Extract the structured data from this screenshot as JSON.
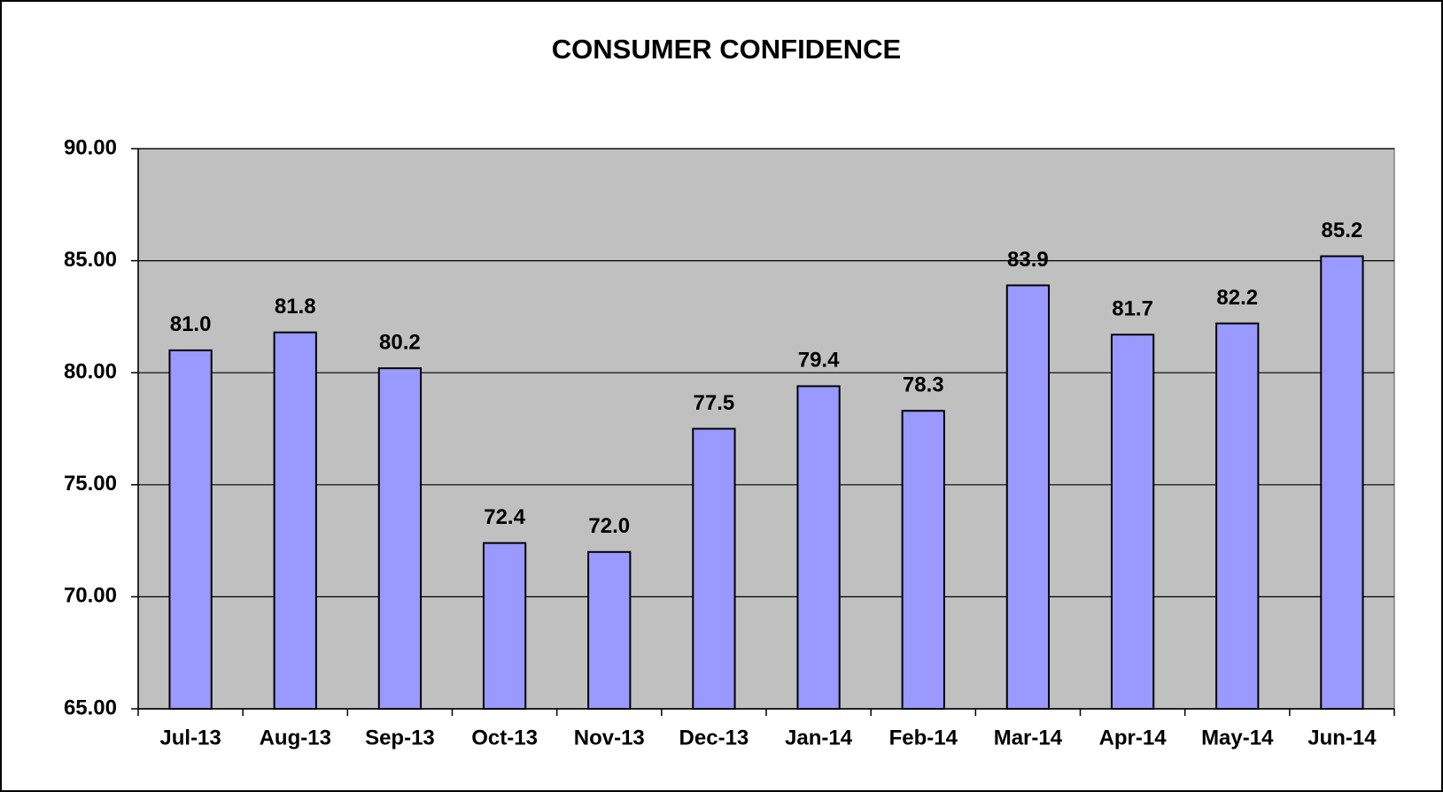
{
  "chart_data": {
    "type": "bar",
    "title": "CONSUMER CONFIDENCE",
    "categories": [
      "Jul-13",
      "Aug-13",
      "Sep-13",
      "Oct-13",
      "Nov-13",
      "Dec-13",
      "Jan-14",
      "Feb-14",
      "Mar-14",
      "Apr-14",
      "May-14",
      "Jun-14"
    ],
    "values": [
      81,
      81.8,
      80.2,
      72.4,
      72,
      77.5,
      79.4,
      78.3,
      83.9,
      81.7,
      82.2,
      85.2
    ],
    "value_labels": [
      "81.0",
      "81.8",
      "80.2",
      "72.4",
      "72.0",
      "77.5",
      "79.4",
      "78.3",
      "83.9",
      "81.7",
      "82.2",
      "85.2"
    ],
    "color": "#9999ff",
    "ylim": [
      65,
      90
    ],
    "yticks": [
      {
        "value": 65,
        "label": "65.00"
      },
      {
        "value": 70,
        "label": "70.00"
      },
      {
        "value": 75,
        "label": "75.00"
      },
      {
        "value": 80,
        "label": "80.00"
      },
      {
        "value": 85,
        "label": "85.00"
      },
      {
        "value": 90,
        "label": "90.00"
      }
    ],
    "grid": true
  }
}
